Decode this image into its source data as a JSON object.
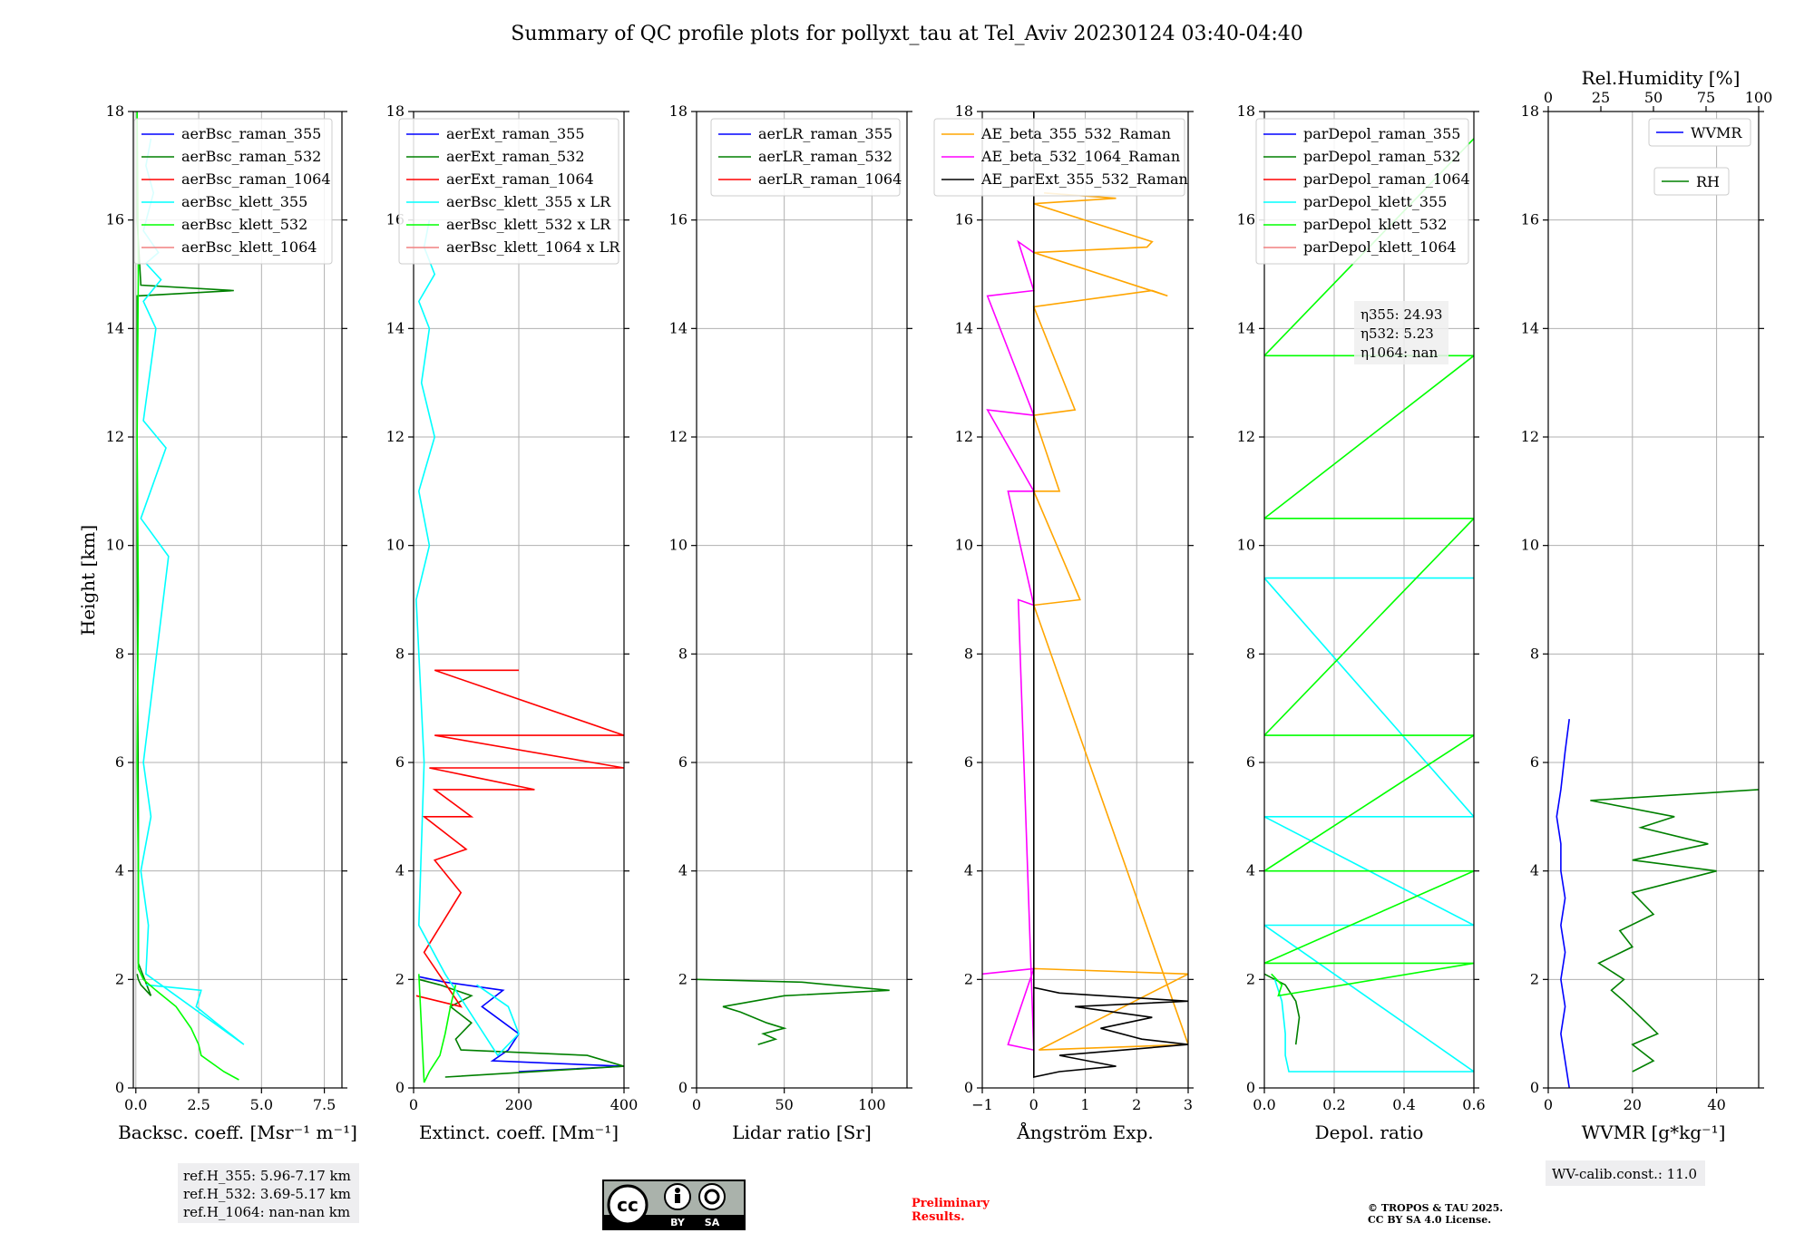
{
  "figure": {
    "title": "Summary of QC profile plots for pollyxt_tau at Tel_Aviv 20230124 03:40-04:40",
    "ylabel": "Height [km]",
    "ref_heights": [
      "ref.H_355: 5.96-7.17 km",
      "ref.H_532: 3.69-5.17 km",
      "ref.H_1064: nan-nan km"
    ],
    "license_badge": [
      "cc",
      "BY",
      "SA"
    ],
    "preliminary": [
      "Preliminary",
      "Results."
    ],
    "copyright": [
      "© TROPOS & TAU 2025.",
      "CC BY SA 4.0 License."
    ],
    "wv_calib": "WV-calib.const.: 11.0",
    "eta_lines": [
      "η355: 24.93",
      "η532: 5.23",
      "η1064: nan"
    ]
  },
  "chart_data": [
    {
      "id": "bsc",
      "type": "line",
      "xlabel": "Backsc. coeff. [Msr⁻¹ m⁻¹]",
      "ylabel": "Height [km]",
      "xlim": [
        -0.1,
        8.2
      ],
      "ylim": [
        0,
        18
      ],
      "xticks": [
        0,
        2.5,
        5.0,
        7.5
      ],
      "xtick_labels": [
        "0.0",
        "2.5",
        "5.0",
        "7.5"
      ],
      "yticks": [
        0,
        2,
        4,
        6,
        8,
        10,
        12,
        14,
        16,
        18
      ],
      "legend_position": "top-right",
      "series": [
        {
          "name": "aerBsc_raman_355",
          "color": "#0000ff",
          "x": [],
          "y": []
        },
        {
          "name": "aerBsc_raman_532",
          "color": "#008000",
          "x": [
            0.05,
            0.1,
            0.2,
            0.4,
            0.6,
            0.1,
            0.1,
            0.05,
            0.05,
            3.9,
            0.2,
            0.05,
            0.05
          ],
          "y": [
            2.1,
            2.0,
            1.9,
            1.8,
            1.7,
            2.3,
            5,
            10,
            14.6,
            14.7,
            14.8,
            16,
            18
          ]
        },
        {
          "name": "aerBsc_raman_1064",
          "color": "#ff0000",
          "x": [],
          "y": []
        },
        {
          "name": "aerBsc_klett_355",
          "color": "#00ffff",
          "x": [
            0.4,
            2.6,
            2.4,
            3.2,
            4.3,
            0.4,
            0.5,
            0.2,
            0.6,
            0.3,
            1.3,
            0.2,
            1.2,
            0.3,
            0.8,
            0.3,
            1.0,
            0.4,
            0.9,
            0.3,
            0.7,
            0.4,
            0.6
          ],
          "y": [
            1.9,
            1.8,
            1.5,
            1.2,
            0.8,
            2.1,
            3,
            4,
            5,
            6,
            9.8,
            10.5,
            11.8,
            12.3,
            14.0,
            14.5,
            14.9,
            15.2,
            15.4,
            15.8,
            16.5,
            17.0,
            17.5
          ]
        },
        {
          "name": "aerBsc_klett_532",
          "color": "#00ff00",
          "x": [
            4.1,
            3.5,
            2.6,
            2.5,
            2.2,
            1.6,
            0.8,
            0.3,
            0.1,
            0.1,
            0.05,
            0.1,
            0.05,
            0.1,
            0.05
          ],
          "y": [
            0.15,
            0.3,
            0.6,
            0.8,
            1.1,
            1.5,
            1.8,
            2.0,
            2.2,
            4,
            6,
            9,
            12,
            15,
            18
          ]
        },
        {
          "name": "aerBsc_klett_1064",
          "color": "#f08080",
          "x": [],
          "y": []
        }
      ]
    },
    {
      "id": "ext",
      "type": "line",
      "xlabel": "Extinct. coeff. [Mm⁻¹]",
      "ylabel": "",
      "xlim": [
        0,
        400
      ],
      "ylim": [
        0,
        18
      ],
      "xticks": [
        0,
        200,
        400
      ],
      "xtick_labels": [
        "0",
        "200",
        "400"
      ],
      "yticks": [
        0,
        2,
        4,
        6,
        8,
        10,
        12,
        14,
        16,
        18
      ],
      "legend_position": "top-right",
      "series": [
        {
          "name": "aerExt_raman_355",
          "color": "#0000ff",
          "x": [
            10,
            60,
            170,
            130,
            200,
            180,
            150,
            400,
            200
          ],
          "y": [
            2.05,
            1.95,
            1.8,
            1.5,
            1.0,
            0.7,
            0.5,
            0.4,
            0.3
          ]
        },
        {
          "name": "aerExt_raman_532",
          "color": "#008000",
          "x": [
            10,
            50,
            110,
            70,
            110,
            80,
            90,
            330,
            400,
            60
          ],
          "y": [
            2.0,
            1.9,
            1.7,
            1.5,
            1.2,
            0.9,
            0.7,
            0.6,
            0.4,
            0.2
          ]
        },
        {
          "name": "aerExt_raman_1064",
          "color": "#ff0000",
          "x": [
            5,
            90,
            20,
            90,
            40,
            100,
            20,
            110,
            40,
            230,
            30,
            400,
            40,
            400,
            40,
            200
          ],
          "y": [
            1.7,
            1.5,
            2.5,
            3.6,
            4.2,
            4.4,
            5.0,
            5.0,
            5.5,
            5.5,
            5.9,
            5.9,
            6.5,
            6.5,
            7.7,
            7.7
          ]
        },
        {
          "name": "aerBsc_klett_355 x LR",
          "color": "#00ffff",
          "x": [
            120,
            180,
            200,
            160,
            60,
            10,
            20,
            5,
            30,
            10,
            40,
            15,
            30,
            10,
            40,
            20,
            30
          ],
          "y": [
            1.9,
            1.5,
            1.0,
            0.6,
            2.1,
            3,
            6,
            9,
            10,
            11,
            12,
            13,
            14,
            14.5,
            15,
            15.5,
            16
          ]
        },
        {
          "name": "aerBsc_klett_532 x LR",
          "color": "#00ff00",
          "x": [
            80,
            70,
            60,
            50,
            30,
            20,
            10
          ],
          "y": [
            1.9,
            1.5,
            1.0,
            0.6,
            0.3,
            0.1,
            2.1
          ]
        },
        {
          "name": "aerBsc_klett_1064 x LR",
          "color": "#f08080",
          "x": [],
          "y": []
        }
      ]
    },
    {
      "id": "lr",
      "type": "line",
      "xlabel": "Lidar ratio [Sr]",
      "ylabel": "",
      "xlim": [
        0,
        120
      ],
      "ylim": [
        0,
        18
      ],
      "xticks": [
        0,
        50,
        100
      ],
      "xtick_labels": [
        "0",
        "50",
        "100"
      ],
      "yticks": [
        0,
        2,
        4,
        6,
        8,
        10,
        12,
        14,
        16,
        18
      ],
      "legend_position": "top-right",
      "series": [
        {
          "name": "aerLR_raman_355",
          "color": "#0000ff",
          "x": [],
          "y": []
        },
        {
          "name": "aerLR_raman_532",
          "color": "#008000",
          "x": [
            0,
            60,
            110,
            50,
            15,
            25,
            40,
            50,
            38,
            45,
            35
          ],
          "y": [
            2.0,
            1.95,
            1.8,
            1.7,
            1.5,
            1.4,
            1.2,
            1.1,
            1.0,
            0.9,
            0.8
          ]
        },
        {
          "name": "aerLR_raman_1064",
          "color": "#ff0000",
          "x": [],
          "y": []
        }
      ]
    },
    {
      "id": "ae",
      "type": "line",
      "xlabel": "Ångström Exp.",
      "ylabel": "",
      "xlim": [
        -1,
        3
      ],
      "ylim": [
        0,
        18
      ],
      "xticks": [
        -1,
        0,
        1,
        2,
        3
      ],
      "xtick_labels": [
        "−1",
        "0",
        "1",
        "2",
        "3"
      ],
      "yticks": [
        0,
        2,
        4,
        6,
        8,
        10,
        12,
        14,
        16,
        18
      ],
      "legend_position": "top-left",
      "series": [
        {
          "name": "AE_beta_355_532_Raman",
          "color": "#ffa500",
          "x": [
            0,
            3,
            0.1,
            3,
            0,
            0.9,
            0,
            0.5,
            0,
            0.8,
            0,
            2.3,
            2.6,
            0,
            2.2,
            2.3,
            0,
            1.6,
            0.2
          ],
          "y": [
            2.2,
            2.1,
            0.7,
            0.8,
            8.9,
            9.0,
            11.0,
            11.0,
            12.4,
            12.5,
            14.4,
            14.7,
            14.6,
            15.4,
            15.5,
            15.6,
            16.3,
            16.4,
            16.5
          ]
        },
        {
          "name": "AE_beta_532_1064_Raman",
          "color": "#ff00ff",
          "x": [
            -1,
            0,
            -0.5,
            0,
            -0.3,
            0,
            -0.5,
            0,
            -0.9,
            0,
            -0.9,
            0,
            -0.3,
            0
          ],
          "y": [
            2.1,
            2.2,
            0.8,
            0.7,
            9.0,
            8.9,
            11.0,
            11.0,
            12.5,
            12.4,
            14.6,
            14.7,
            15.6,
            15.4
          ]
        },
        {
          "name": "AE_parExt_355_532_Raman",
          "color": "#000000",
          "x": [
            0,
            0,
            0.5,
            3,
            0.8,
            2.3,
            1.3,
            2.1,
            3,
            0.5,
            1.6,
            0.5,
            0,
            0
          ],
          "y": [
            2.0,
            1.85,
            1.75,
            1.6,
            1.5,
            1.3,
            1.1,
            0.9,
            0.8,
            0.6,
            0.4,
            0.3,
            0.2,
            18
          ]
        }
      ]
    },
    {
      "id": "depol",
      "type": "line",
      "xlabel": "Depol. ratio",
      "ylabel": "",
      "xlim": [
        0,
        0.6
      ],
      "ylim": [
        0,
        18
      ],
      "xticks": [
        0,
        0.2,
        0.4,
        0.6
      ],
      "xtick_labels": [
        "0.0",
        "0.2",
        "0.4",
        "0.6"
      ],
      "yticks": [
        0,
        2,
        4,
        6,
        8,
        10,
        12,
        14,
        16,
        18
      ],
      "legend_position": "top-left",
      "series": [
        {
          "name": "parDepol_raman_355",
          "color": "#0000ff",
          "x": [],
          "y": []
        },
        {
          "name": "parDepol_raman_532",
          "color": "#008000",
          "x": [
            0.0,
            0.06,
            0.09,
            0.1,
            0.09
          ],
          "y": [
            2.1,
            1.9,
            1.6,
            1.3,
            0.8
          ]
        },
        {
          "name": "parDepol_raman_1064",
          "color": "#ff0000",
          "x": [],
          "y": []
        },
        {
          "name": "parDepol_klett_355",
          "color": "#00ffff",
          "x": [
            0.03,
            0.05,
            0.06,
            0.06,
            0.07,
            0.6,
            0.0,
            0.6,
            0.0,
            0.6,
            0.0,
            0.6
          ],
          "y": [
            2.0,
            1.6,
            1.0,
            0.6,
            0.3,
            0.3,
            3.0,
            3.0,
            5.0,
            5.0,
            9.4,
            9.4
          ]
        },
        {
          "name": "parDepol_klett_532",
          "color": "#00ff00",
          "x": [
            0.02,
            0.05,
            0.04,
            0.6,
            0.0,
            0.6,
            0.0,
            0.6,
            0.0,
            0.6,
            0.0,
            0.6,
            0.0,
            0.6
          ],
          "y": [
            2.1,
            1.9,
            1.7,
            2.3,
            2.3,
            4.0,
            4.0,
            6.5,
            6.5,
            10.5,
            10.5,
            13.5,
            13.5,
            17.5
          ]
        },
        {
          "name": "parDepol_klett_1064",
          "color": "#f08080",
          "x": [],
          "y": []
        }
      ]
    },
    {
      "id": "wv",
      "type": "line",
      "xlabel": "WVMR [g*kg⁻¹]",
      "ylabel": "",
      "top_xlabel": "Rel.Humidity [%]",
      "xlim": [
        0,
        50
      ],
      "ylim": [
        0,
        18
      ],
      "xticks": [
        0,
        20,
        40
      ],
      "xtick_labels": [
        "0",
        "20",
        "40"
      ],
      "top_xlim": [
        0,
        100
      ],
      "top_xticks": [
        0,
        25,
        50,
        75,
        100
      ],
      "top_xtick_labels": [
        "0",
        "25",
        "50",
        "75",
        "100"
      ],
      "yticks": [
        0,
        2,
        4,
        6,
        8,
        10,
        12,
        14,
        16,
        18
      ],
      "legend_position": "top-right",
      "series": [
        {
          "name": "WVMR",
          "color": "#0000ff",
          "x": [
            5,
            4,
            3,
            4,
            3,
            4,
            3,
            4,
            3,
            3,
            2,
            3,
            4,
            5
          ],
          "y": [
            0,
            0.5,
            1.0,
            1.5,
            2.0,
            2.5,
            3.0,
            3.5,
            4.0,
            4.5,
            5.0,
            5.5,
            6.2,
            6.8
          ]
        },
        {
          "name": "RH",
          "color": "#008000",
          "x": [
            20,
            25,
            20,
            26,
            22,
            18,
            15,
            18,
            12,
            20,
            17,
            25,
            20,
            40,
            20,
            38,
            22,
            30,
            10,
            50
          ],
          "y": [
            0.3,
            0.5,
            0.8,
            1.0,
            1.3,
            1.6,
            1.8,
            2.0,
            2.3,
            2.6,
            2.9,
            3.2,
            3.6,
            4.0,
            4.2,
            4.5,
            4.8,
            5.0,
            5.3,
            5.5
          ]
        }
      ]
    }
  ]
}
